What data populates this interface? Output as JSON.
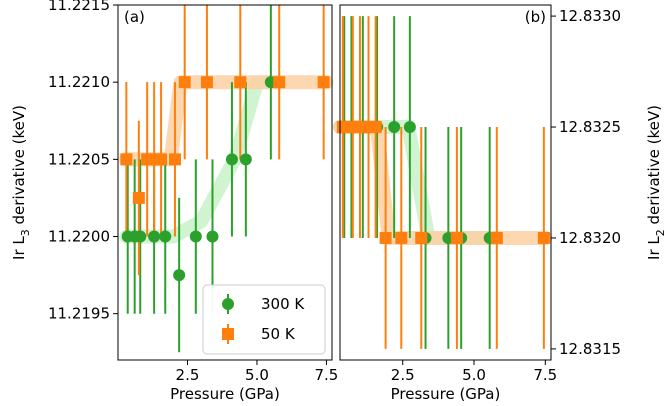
{
  "colors": {
    "green": "#2ca02c",
    "orange": "#ff7f0e",
    "band_orange": "#fdd0a2",
    "band_green": "#c7f2c7",
    "frame": "#000000"
  },
  "chart_data": [
    {
      "type": "scatter",
      "panel_label": "(a)",
      "xlabel": "Pressure (GPa)",
      "ylabel": "Ir L3 derivative (keV)",
      "ylabel_parts": {
        "pre": "Ir L",
        "sub": "3",
        "post": " derivative (keV)"
      },
      "y_axis_side": "left",
      "xlim": [
        0,
        7.7
      ],
      "ylim": [
        11.2192,
        11.2215
      ],
      "xticks": [
        2.5,
        5.0,
        7.5
      ],
      "xtick_labels": [
        "2.5",
        "5.0",
        "7.5"
      ],
      "yticks": [
        11.2195,
        11.22,
        11.2205,
        11.221,
        11.2215
      ],
      "ytick_labels": [
        "11.2195",
        "11.2200",
        "11.2205",
        "11.2210",
        "11.2215"
      ],
      "series": [
        {
          "name": "300 K",
          "color": "green",
          "marker": "circle",
          "x": [
            0.35,
            0.6,
            0.8,
            1.3,
            1.7,
            2.2,
            2.8,
            3.4,
            4.1,
            4.6,
            5.5
          ],
          "y": [
            11.22,
            11.22,
            11.22,
            11.22,
            11.22,
            11.21975,
            11.22,
            11.22,
            11.2205,
            11.2205,
            11.221
          ],
          "err": [
            0.0005,
            0.0005,
            0.0005,
            0.0005,
            0.0005,
            0.0005,
            0.0005,
            0.0005,
            0.0005,
            0.0005,
            0.0005
          ]
        },
        {
          "name": "50 K",
          "color": "orange",
          "marker": "square",
          "x": [
            0.3,
            0.75,
            1.05,
            1.3,
            1.55,
            2.05,
            2.4,
            3.2,
            4.4,
            5.8,
            7.4
          ],
          "y": [
            11.2205,
            11.22025,
            11.2205,
            11.2205,
            11.2205,
            11.2205,
            11.221,
            11.221,
            11.221,
            11.221,
            11.221
          ],
          "err": [
            0.0005,
            0.0005,
            0.0005,
            0.0005,
            0.0005,
            0.0005,
            0.0005,
            0.0005,
            0.0005,
            0.0005,
            0.0005
          ]
        }
      ],
      "legend": {
        "placement": "lower-right",
        "entries": [
          "300 K",
          "50 K"
        ]
      },
      "bands": [
        {
          "color": "band_green",
          "x": [
            0.3,
            2.0,
            3.0,
            4.2,
            5.0,
            5.8
          ],
          "y": [
            11.22,
            11.22,
            11.2201,
            11.2205,
            11.221,
            11.221
          ]
        },
        {
          "color": "band_orange",
          "x": [
            0.3,
            1.9,
            2.25,
            7.5
          ],
          "y": [
            11.2205,
            11.2205,
            11.221,
            11.221
          ]
        }
      ]
    },
    {
      "type": "scatter",
      "panel_label": "(b)",
      "xlabel": "Pressure (GPa)",
      "ylabel": "Ir L2 derivative (keV)",
      "ylabel_parts": {
        "pre": "Ir L",
        "sub": "2",
        "post": " derivative (keV)"
      },
      "y_axis_side": "right",
      "xlim": [
        0.3,
        7.7
      ],
      "ylim": [
        12.83145,
        12.83305
      ],
      "xticks": [
        2.5,
        5.0,
        7.5
      ],
      "xtick_labels": [
        "2.5",
        "5.0",
        "7.5"
      ],
      "yticks": [
        12.8315,
        12.832,
        12.8325,
        12.833
      ],
      "ytick_labels": [
        "12.8315",
        "12.8320",
        "12.8325",
        "12.8330"
      ],
      "series": [
        {
          "name": "300 K",
          "color": "green",
          "marker": "circle",
          "x": [
            0.45,
            0.7,
            1.1,
            1.6,
            2.2,
            2.75,
            3.3,
            4.1,
            4.55,
            5.55
          ],
          "y": [
            12.8325,
            12.8325,
            12.8325,
            12.8325,
            12.8325,
            12.8325,
            12.832,
            12.832,
            12.832,
            12.832
          ],
          "err": [
            0.0005,
            0.0005,
            0.0005,
            0.0005,
            0.0005,
            0.0005,
            0.0005,
            0.0005,
            0.0005,
            0.0005
          ]
        },
        {
          "name": "50 K",
          "color": "orange",
          "marker": "square",
          "x": [
            0.4,
            0.75,
            1.0,
            1.3,
            1.55,
            1.9,
            2.45,
            3.15,
            4.4,
            5.8,
            7.45
          ],
          "y": [
            12.8325,
            12.8325,
            12.8325,
            12.8325,
            12.8325,
            12.832,
            12.832,
            12.832,
            12.832,
            12.832,
            12.832
          ],
          "err": [
            0.0005,
            0.0005,
            0.0005,
            0.0005,
            0.0005,
            0.0005,
            0.0005,
            0.0005,
            0.0005,
            0.0005,
            0.0005
          ]
        }
      ],
      "bands": [
        {
          "color": "band_green",
          "x": [
            0.3,
            2.7,
            3.4,
            5.7
          ],
          "y": [
            12.8325,
            12.8325,
            12.832,
            12.832
          ]
        },
        {
          "color": "band_orange",
          "x": [
            0.3,
            1.6,
            2.0,
            7.5
          ],
          "y": [
            12.8325,
            12.8325,
            12.832,
            12.832
          ]
        }
      ]
    }
  ]
}
